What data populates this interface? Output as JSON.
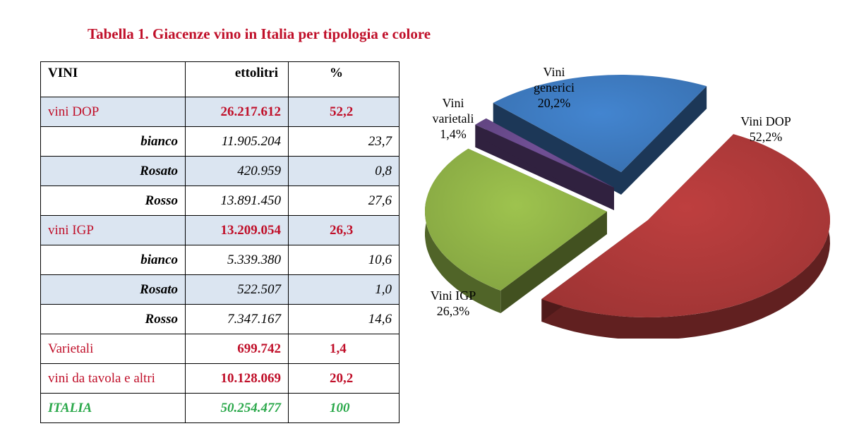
{
  "title": "Tabella 1. Giacenze vino in Italia per tipologia e colore",
  "table": {
    "headers": [
      "VINI",
      "ettolitri",
      "%"
    ],
    "rows": [
      {
        "kind": "cat",
        "name": "vini DOP",
        "value": "26.217.612",
        "pct": "52,2"
      },
      {
        "kind": "sub",
        "name": "bianco",
        "value": "11.905.204",
        "pct": "23,7"
      },
      {
        "kind": "sub",
        "name": "Rosato",
        "value": "420.959",
        "pct": "0,8"
      },
      {
        "kind": "sub",
        "name": "Rosso",
        "value": "13.891.450",
        "pct": "27,6"
      },
      {
        "kind": "cat",
        "name": "vini IGP",
        "value": "13.209.054",
        "pct": "26,3"
      },
      {
        "kind": "sub",
        "name": "bianco",
        "value": "5.339.380",
        "pct": "10,6"
      },
      {
        "kind": "sub",
        "name": "Rosato",
        "value": "522.507",
        "pct": "1,0"
      },
      {
        "kind": "sub",
        "name": "Rosso",
        "value": "7.347.167",
        "pct": "14,6"
      },
      {
        "kind": "cat",
        "name": "Varietali",
        "value": "699.742",
        "pct": "1,4"
      },
      {
        "kind": "cat",
        "name": "vini da tavola e altri",
        "value": "10.128.069",
        "pct": "20,2"
      },
      {
        "kind": "total",
        "name": "ITALIA",
        "value": "50.254.477",
        "pct": "100"
      }
    ]
  },
  "chart_data": {
    "type": "pie",
    "slices": [
      {
        "name": "Vini DOP",
        "value": 52.2,
        "label_lines": [
          "Vini DOP",
          "52,2%"
        ],
        "color": "#b03a3a"
      },
      {
        "name": "Vini IGP",
        "value": 26.3,
        "label_lines": [
          "Vini IGP",
          "26,3%"
        ],
        "color": "#92b548"
      },
      {
        "name": "Vini varietali",
        "value": 1.4,
        "label_lines": [
          "Vini",
          "varietali",
          "1,4%"
        ],
        "color": "#6a4a8c"
      },
      {
        "name": "Vini generici",
        "value": 20.2,
        "label_lines": [
          "Vini",
          "generici",
          "20,2%"
        ],
        "color": "#3e7bc1"
      }
    ]
  }
}
